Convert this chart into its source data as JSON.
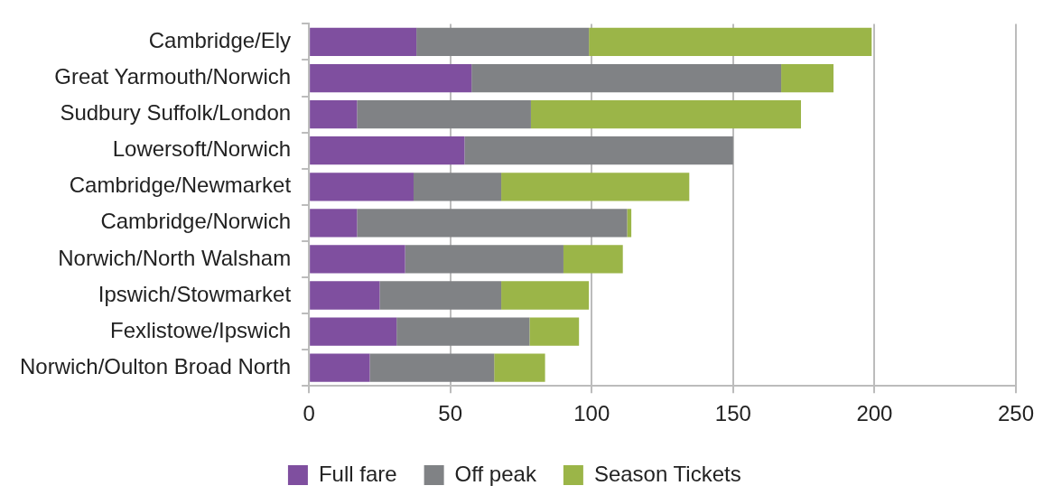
{
  "chart_data": {
    "type": "bar",
    "orientation": "horizontal",
    "stacked": true,
    "categories": [
      "Cambridge/Ely",
      "Great Yarmouth/Norwich",
      "Sudbury Suffolk/London",
      "Lowersoft/Norwich",
      "Cambridge/Newmarket",
      "Cambridge/Norwich",
      "Norwich/North Walsham",
      "Ipswich/Stowmarket",
      "Fexlistowe/Ipswich",
      "Norwich/Oulton Broad North"
    ],
    "series": [
      {
        "name": "Full fare",
        "color": "#7f4f9f",
        "values": [
          38,
          57.5,
          17,
          55,
          37,
          17,
          34,
          25,
          31,
          21.5
        ]
      },
      {
        "name": "Off peak",
        "color": "#808285",
        "values": [
          61,
          109.5,
          61.5,
          95,
          31,
          95.5,
          56,
          43,
          47,
          44
        ]
      },
      {
        "name": "Season Tickets",
        "color": "#9bb548",
        "values": [
          100,
          18.5,
          95.5,
          0,
          66.5,
          1.5,
          21,
          31,
          17.5,
          18
        ]
      }
    ],
    "xlim": [
      0,
      250
    ],
    "xticks": [
      0,
      50,
      100,
      150,
      200,
      250
    ],
    "grid": "x",
    "legend": "bottom"
  }
}
